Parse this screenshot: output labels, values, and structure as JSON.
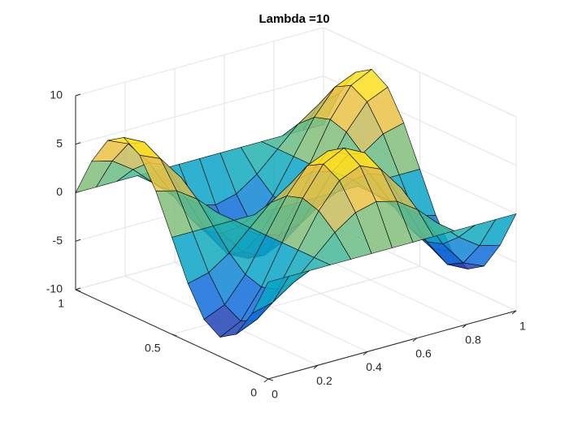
{
  "chart_data": {
    "type": "surface",
    "title": "Lambda =10",
    "x": [
      0,
      0.0833,
      0.1667,
      0.25,
      0.3333,
      0.4167,
      0.5,
      0.5833,
      0.6667,
      0.75,
      0.8333,
      0.9167,
      1
    ],
    "y": [
      0,
      0.0833,
      0.1667,
      0.25,
      0.3333,
      0.4167,
      0.5,
      0.5833,
      0.6667,
      0.75,
      0.8333,
      0.9167,
      1
    ],
    "z": [
      [
        0,
        0,
        0,
        0,
        0,
        0,
        0,
        0,
        0,
        0,
        0,
        0,
        0
      ],
      [
        -4,
        -3.46,
        -2,
        0,
        2,
        3.46,
        4,
        3.46,
        2,
        0,
        -2,
        -3.46,
        -4
      ],
      [
        -6.93,
        -6,
        -3.46,
        0,
        3.46,
        6,
        6.93,
        6,
        3.46,
        0,
        -3.46,
        -6,
        -6.93
      ],
      [
        -8,
        -6.93,
        -4,
        0,
        4,
        6.93,
        8,
        6.93,
        4,
        0,
        -4,
        -6.93,
        -8
      ],
      [
        -6.93,
        -6,
        -3.46,
        0,
        3.46,
        6,
        6.93,
        6,
        3.46,
        0,
        -3.46,
        -6,
        -6.93
      ],
      [
        -4,
        -3.46,
        -2,
        0,
        2,
        3.46,
        4,
        3.46,
        2,
        0,
        -2,
        -3.46,
        -4
      ],
      [
        0,
        0,
        0,
        0,
        0,
        0,
        0,
        0,
        0,
        0,
        0,
        0,
        0
      ],
      [
        4,
        3.46,
        2,
        0,
        -2,
        -3.46,
        -4,
        -3.46,
        -2,
        0,
        2,
        3.46,
        4
      ],
      [
        6.93,
        6,
        3.46,
        0,
        -3.46,
        -6,
        -6.93,
        -6,
        -3.46,
        0,
        3.46,
        6,
        6.93
      ],
      [
        8,
        6.93,
        4,
        0,
        -4,
        -6.93,
        -8,
        -6.93,
        -4,
        0,
        4,
        6.93,
        8
      ],
      [
        6.93,
        6,
        3.46,
        0,
        -3.46,
        -6,
        -6.93,
        -6,
        -3.46,
        0,
        3.46,
        6,
        6.93
      ],
      [
        4,
        3.46,
        2,
        0,
        -2,
        -3.46,
        -4,
        -3.46,
        -2,
        0,
        2,
        3.46,
        4
      ],
      [
        0,
        0,
        0,
        0,
        0,
        0,
        0,
        0,
        0,
        0,
        0,
        0,
        0
      ]
    ],
    "xlim": [
      0,
      1
    ],
    "ylim": [
      0,
      1
    ],
    "zlim": [
      -10,
      10
    ],
    "xticks": [
      0,
      0.2,
      0.4,
      0.6,
      0.8,
      1
    ],
    "yticks": [
      0,
      0.5,
      1
    ],
    "zticks": [
      -10,
      -5,
      0,
      5,
      10
    ],
    "grid": true,
    "colormap": [
      "#352a87",
      "#0f5cdd",
      "#1481d6",
      "#06a4ca",
      "#2eb7a4",
      "#87bf77",
      "#d1bb59",
      "#fec832",
      "#f9fb0e"
    ]
  }
}
